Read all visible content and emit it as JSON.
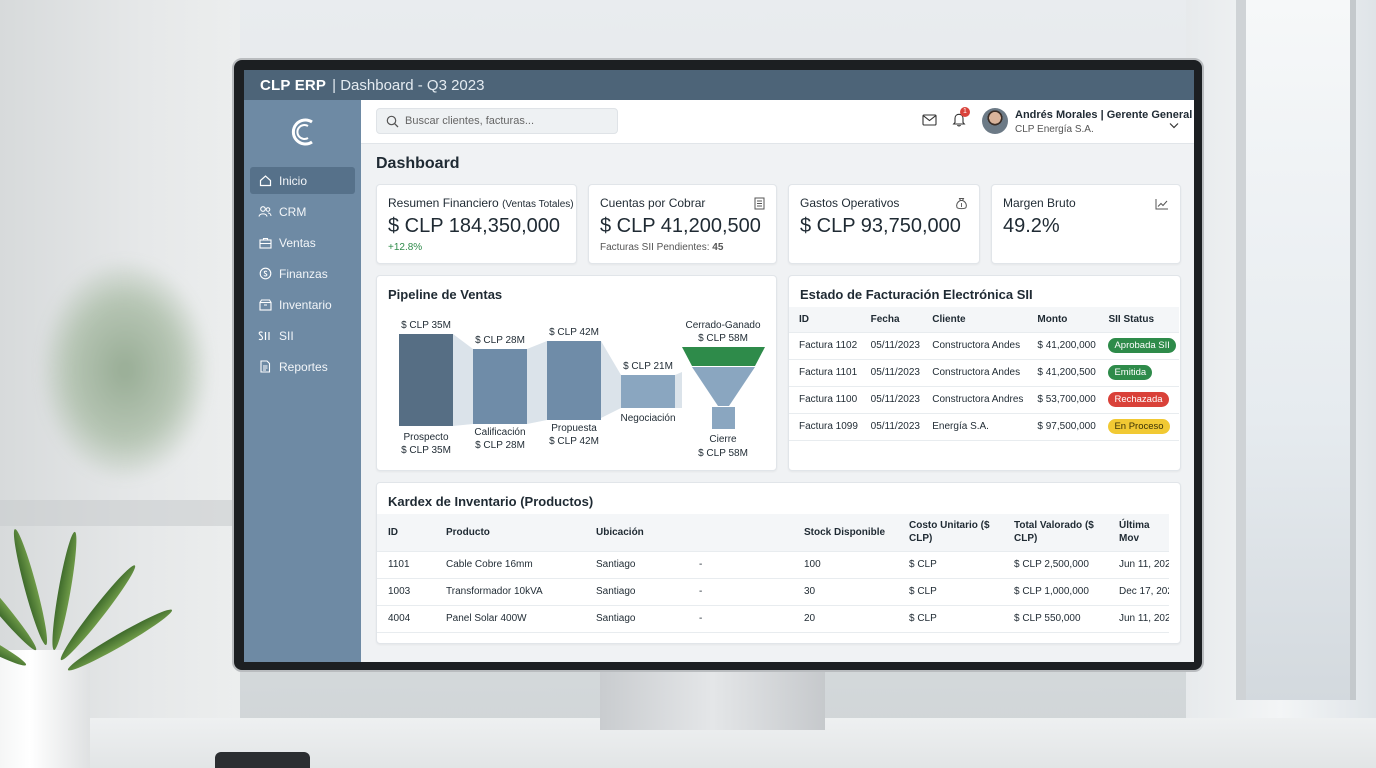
{
  "window": {
    "brand": "CLP ERP",
    "subtitle": "| Dashboard - Q3 2023"
  },
  "sidebar": {
    "items": [
      {
        "label": "Inicio",
        "icon": "home-icon",
        "active": true
      },
      {
        "label": "CRM",
        "icon": "users-icon"
      },
      {
        "label": "Ventas",
        "icon": "briefcase-icon"
      },
      {
        "label": "Finanzas",
        "icon": "coin-icon"
      },
      {
        "label": "Inventario",
        "icon": "box-icon"
      },
      {
        "label": "SII",
        "icon": "sii-icon"
      },
      {
        "label": "Reportes",
        "icon": "report-icon"
      }
    ]
  },
  "topbar": {
    "search_placeholder": "Buscar clientes, facturas...",
    "notifications": "1",
    "user_name": "Andrés Morales | Gerente General",
    "user_company": "CLP Energía S.A."
  },
  "page": {
    "title": "Dashboard"
  },
  "kpis": [
    {
      "title": "Resumen Financiero",
      "title_suffix": "(Ventas Totales)",
      "value": "$ CLP 184,350,000",
      "foot": "+12.8%"
    },
    {
      "title": "Cuentas por Cobrar",
      "value": "$ CLP 41,200,500",
      "foot_label": "Facturas SII Pendientes:",
      "foot_value": "45"
    },
    {
      "title": "Gastos Operativos",
      "value": "$ CLP 93,750,000"
    },
    {
      "title": "Margen Bruto",
      "value": "49.2%"
    }
  ],
  "pipeline": {
    "title": "Pipeline de Ventas",
    "stages": [
      {
        "name": "Prospecto",
        "value_label": "$ CLP 35M"
      },
      {
        "name": "Calificación",
        "value_label": "$ CLP 28M"
      },
      {
        "name": "Propuesta",
        "value_label": "$ CLP 42M"
      },
      {
        "name": "Negociación",
        "value_label": "$ CLP 21M"
      },
      {
        "name": "Cerrado-Ganado",
        "value_label": "$ CLP 58M"
      },
      {
        "name": "Cierre",
        "value_label": "$ CLP 58M"
      }
    ],
    "colors": {
      "prospecto": "#566e84",
      "mid": "#6f8ca8",
      "light": "#8aa6c0",
      "won": "#2e8b4a"
    }
  },
  "sii": {
    "title": "Estado de Facturación Electrónica SII",
    "headers": [
      "ID",
      "Fecha",
      "Cliente",
      "Monto",
      "SII Status"
    ],
    "rows": [
      {
        "id": "Factura 1102",
        "fecha": "05/11/2023",
        "cliente": "Constructora Andes",
        "monto": "$ 41,200,000",
        "status": "Aprobada SII",
        "tone": "green"
      },
      {
        "id": "Factura 1101",
        "fecha": "05/11/2023",
        "cliente": "Constructora Andes",
        "monto": "$ 41,200,500",
        "status": "Emitida",
        "tone": "green"
      },
      {
        "id": "Factura 1100",
        "fecha": "05/11/2023",
        "cliente": "Constructora Andres",
        "monto": "$ 53,700,000",
        "status": "Rechazada",
        "tone": "red"
      },
      {
        "id": "Factura 1099",
        "fecha": "05/11/2023",
        "cliente": "Energía S.A.",
        "monto": "$ 97,500,000",
        "status": "En Proceso",
        "tone": "yellow"
      }
    ]
  },
  "kardex": {
    "title": "Kardex de Inventario (Productos)",
    "headers": [
      "ID",
      "Producto",
      "Ubicación",
      "",
      "Stock Disponible",
      "Costo Unitario ($ CLP)",
      "Total Valorado ($ CLP)",
      "Última Mov"
    ],
    "rows": [
      {
        "id": "1101",
        "producto": "Cable Cobre 16mm",
        "ubicacion": "Santiago",
        "extra": "-",
        "stock": "100",
        "costo": "$ CLP",
        "total": "$ CLP 2,500,000",
        "mov": "Jun 11, 202"
      },
      {
        "id": "1003",
        "producto": "Transformador 10kVA",
        "ubicacion": "Santiago",
        "extra": "-",
        "stock": "30",
        "costo": "$ CLP",
        "total": "$ CLP 1,000,000",
        "mov": "Dec 17, 202"
      },
      {
        "id": "4004",
        "producto": "Panel Solar 400W",
        "ubicacion": "Santiago",
        "extra": "-",
        "stock": "20",
        "costo": "$ CLP",
        "total": "$ CLP 550,000",
        "mov": "Jun 11, 202"
      }
    ]
  }
}
